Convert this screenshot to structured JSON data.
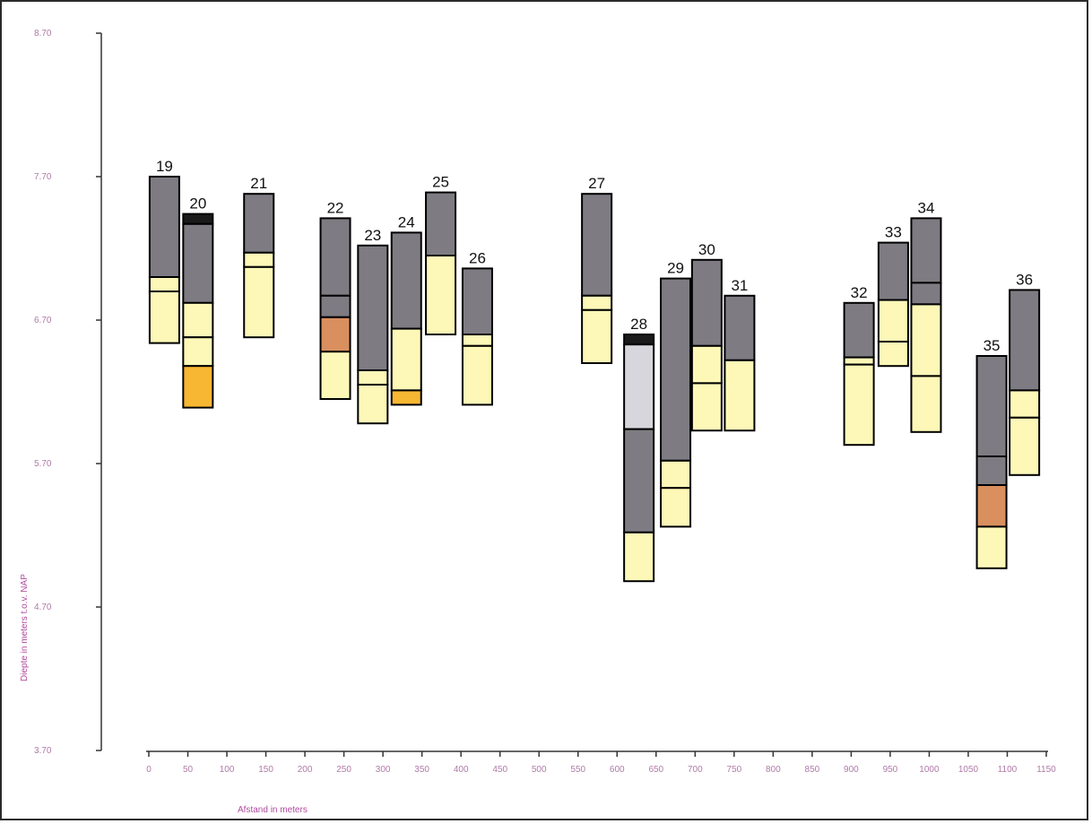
{
  "chart_data": {
    "type": "bar",
    "xlabel": "Afstand in meters",
    "ylabel": "Diepte in meters t.o.v. NAP",
    "ylim": [
      3.7,
      8.7
    ],
    "xlim": [
      0,
      1150
    ],
    "x_ticks": [
      0,
      50,
      100,
      150,
      200,
      250,
      300,
      350,
      400,
      450,
      500,
      550,
      600,
      650,
      700,
      750,
      800,
      850,
      900,
      950,
      1000,
      1050,
      1100,
      1150
    ],
    "x_tick_labels": [
      "0",
      "50",
      "100",
      "150",
      "200",
      "250",
      "300",
      "350",
      "400",
      "450",
      "500",
      "550",
      "600",
      "650",
      "700",
      "750",
      "800",
      "850",
      "900",
      "950",
      "1000",
      "1050",
      "1100",
      "1150"
    ],
    "y_ticks": [
      3.7,
      4.7,
      5.7,
      6.7,
      7.7,
      8.7
    ],
    "y_tick_labels": [
      "3.70",
      "4.70",
      "5.70",
      "6.70",
      "7.70",
      "8.70"
    ],
    "colors": {
      "dark_grey": "#7e7c82",
      "black": "#1a1a1a",
      "light_grey": "#d7d6dc",
      "yellow": "#fdf8b8",
      "orange": "#f7b733",
      "brown": "#d98f5e"
    },
    "cores": [
      {
        "label": "19",
        "x": 20,
        "layers": [
          {
            "top": 7.7,
            "bottom": 7.0,
            "color": "dark_grey"
          },
          {
            "top": 7.0,
            "bottom": 6.9,
            "color": "yellow"
          },
          {
            "top": 6.9,
            "bottom": 6.54,
            "color": "yellow"
          }
        ]
      },
      {
        "label": "20",
        "x": 63,
        "layers": [
          {
            "top": 7.44,
            "bottom": 7.37,
            "color": "black"
          },
          {
            "top": 7.37,
            "bottom": 6.82,
            "color": "dark_grey"
          },
          {
            "top": 6.82,
            "bottom": 6.58,
            "color": "yellow"
          },
          {
            "top": 6.58,
            "bottom": 6.38,
            "color": "yellow"
          },
          {
            "top": 6.38,
            "bottom": 6.09,
            "color": "orange"
          }
        ]
      },
      {
        "label": "21",
        "x": 141,
        "layers": [
          {
            "top": 7.58,
            "bottom": 7.17,
            "color": "dark_grey"
          },
          {
            "top": 7.17,
            "bottom": 7.07,
            "color": "yellow"
          },
          {
            "top": 7.07,
            "bottom": 6.58,
            "color": "yellow"
          }
        ]
      },
      {
        "label": "22",
        "x": 239,
        "layers": [
          {
            "top": 7.41,
            "bottom": 6.87,
            "color": "dark_grey"
          },
          {
            "top": 6.87,
            "bottom": 6.72,
            "color": "dark_grey"
          },
          {
            "top": 6.72,
            "bottom": 6.48,
            "color": "brown"
          },
          {
            "top": 6.48,
            "bottom": 6.15,
            "color": "yellow"
          }
        ]
      },
      {
        "label": "23",
        "x": 287,
        "layers": [
          {
            "top": 7.22,
            "bottom": 6.35,
            "color": "dark_grey"
          },
          {
            "top": 6.35,
            "bottom": 6.25,
            "color": "yellow"
          },
          {
            "top": 6.25,
            "bottom": 5.98,
            "color": "yellow"
          }
        ]
      },
      {
        "label": "24",
        "x": 330,
        "layers": [
          {
            "top": 7.31,
            "bottom": 6.64,
            "color": "dark_grey"
          },
          {
            "top": 6.64,
            "bottom": 6.21,
            "color": "yellow"
          },
          {
            "top": 6.21,
            "bottom": 6.11,
            "color": "orange"
          }
        ]
      },
      {
        "label": "25",
        "x": 374,
        "layers": [
          {
            "top": 7.59,
            "bottom": 7.15,
            "color": "dark_grey"
          },
          {
            "top": 7.15,
            "bottom": 6.6,
            "color": "yellow"
          }
        ]
      },
      {
        "label": "26",
        "x": 421,
        "layers": [
          {
            "top": 7.06,
            "bottom": 6.6,
            "color": "dark_grey"
          },
          {
            "top": 6.6,
            "bottom": 6.52,
            "color": "yellow"
          },
          {
            "top": 6.52,
            "bottom": 6.11,
            "color": "yellow"
          }
        ]
      },
      {
        "label": "27",
        "x": 574,
        "layers": [
          {
            "top": 7.58,
            "bottom": 6.87,
            "color": "dark_grey"
          },
          {
            "top": 6.87,
            "bottom": 6.77,
            "color": "yellow"
          },
          {
            "top": 6.77,
            "bottom": 6.4,
            "color": "yellow"
          }
        ]
      },
      {
        "label": "28",
        "x": 628,
        "layers": [
          {
            "top": 6.6,
            "bottom": 6.53,
            "color": "black"
          },
          {
            "top": 6.53,
            "bottom": 5.94,
            "color": "light_grey"
          },
          {
            "top": 5.94,
            "bottom": 5.22,
            "color": "dark_grey"
          },
          {
            "top": 5.22,
            "bottom": 4.88,
            "color": "yellow"
          }
        ]
      },
      {
        "label": "29",
        "x": 675,
        "layers": [
          {
            "top": 6.99,
            "bottom": 5.72,
            "color": "dark_grey"
          },
          {
            "top": 5.72,
            "bottom": 5.53,
            "color": "yellow"
          },
          {
            "top": 5.53,
            "bottom": 5.26,
            "color": "yellow"
          }
        ]
      },
      {
        "label": "30",
        "x": 715,
        "layers": [
          {
            "top": 7.12,
            "bottom": 6.52,
            "color": "dark_grey"
          },
          {
            "top": 6.52,
            "bottom": 6.26,
            "color": "yellow"
          },
          {
            "top": 6.26,
            "bottom": 5.93,
            "color": "yellow"
          }
        ]
      },
      {
        "label": "31",
        "x": 757,
        "layers": [
          {
            "top": 6.87,
            "bottom": 6.42,
            "color": "dark_grey"
          },
          {
            "top": 6.42,
            "bottom": 5.93,
            "color": "yellow"
          }
        ]
      },
      {
        "label": "32",
        "x": 910,
        "layers": [
          {
            "top": 6.82,
            "bottom": 6.44,
            "color": "dark_grey"
          },
          {
            "top": 6.44,
            "bottom": 6.39,
            "color": "yellow"
          },
          {
            "top": 6.39,
            "bottom": 5.83,
            "color": "yellow"
          }
        ]
      },
      {
        "label": "33",
        "x": 954,
        "layers": [
          {
            "top": 7.24,
            "bottom": 6.84,
            "color": "dark_grey"
          },
          {
            "top": 6.84,
            "bottom": 6.55,
            "color": "yellow"
          },
          {
            "top": 6.55,
            "bottom": 6.38,
            "color": "yellow"
          }
        ]
      },
      {
        "label": "34",
        "x": 996,
        "layers": [
          {
            "top": 7.41,
            "bottom": 6.96,
            "color": "dark_grey"
          },
          {
            "top": 6.96,
            "bottom": 6.81,
            "color": "dark_grey"
          },
          {
            "top": 6.81,
            "bottom": 6.31,
            "color": "yellow"
          },
          {
            "top": 6.31,
            "bottom": 5.92,
            "color": "yellow"
          }
        ]
      },
      {
        "label": "35",
        "x": 1080,
        "layers": [
          {
            "top": 6.45,
            "bottom": 5.75,
            "color": "dark_grey"
          },
          {
            "top": 5.75,
            "bottom": 5.55,
            "color": "dark_grey"
          },
          {
            "top": 5.55,
            "bottom": 5.26,
            "color": "brown"
          },
          {
            "top": 5.26,
            "bottom": 4.97,
            "color": "yellow"
          }
        ]
      },
      {
        "label": "36",
        "x": 1122,
        "layers": [
          {
            "top": 6.91,
            "bottom": 6.21,
            "color": "dark_grey"
          },
          {
            "top": 6.21,
            "bottom": 6.02,
            "color": "yellow"
          },
          {
            "top": 6.02,
            "bottom": 5.62,
            "color": "yellow"
          }
        ]
      }
    ]
  }
}
